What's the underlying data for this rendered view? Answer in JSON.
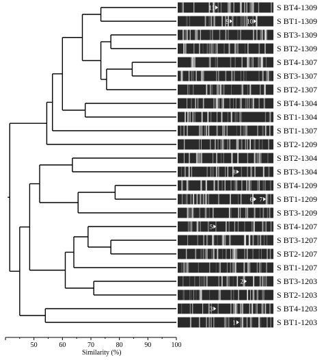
{
  "samples": [
    {
      "label": "S BT4-1309",
      "marks": [
        {
          "n": "11",
          "pos": 0.4
        }
      ]
    },
    {
      "label": "S BT1-1309",
      "marks": [
        {
          "n": "9",
          "pos": 0.55
        },
        {
          "n": "10",
          "pos": 0.8
        }
      ]
    },
    {
      "label": "S BT3-1309",
      "marks": []
    },
    {
      "label": "S BT2-1309",
      "marks": []
    },
    {
      "label": "S BT4-1307",
      "marks": []
    },
    {
      "label": "S BT3-1307",
      "marks": []
    },
    {
      "label": "S BT2-1307",
      "marks": []
    },
    {
      "label": "S BT4-1304",
      "marks": []
    },
    {
      "label": "S BT1-1304",
      "marks": []
    },
    {
      "label": "S BT1-1307",
      "marks": []
    },
    {
      "label": "S BT2-1209",
      "marks": []
    },
    {
      "label": "S BT2-1304",
      "marks": []
    },
    {
      "label": "S BT3-1304",
      "marks": [
        {
          "n": "8",
          "pos": 0.62
        }
      ]
    },
    {
      "label": "S BT4-1209",
      "marks": []
    },
    {
      "label": "S BT1-1209",
      "marks": [
        {
          "n": "6",
          "pos": 0.8
        },
        {
          "n": "7",
          "pos": 0.9
        }
      ]
    },
    {
      "label": "S BT3-1209",
      "marks": []
    },
    {
      "label": "S BT4-1207",
      "marks": [
        {
          "n": "5",
          "pos": 0.38
        }
      ]
    },
    {
      "label": "S BT3-1207",
      "marks": []
    },
    {
      "label": "S BT2-1207",
      "marks": []
    },
    {
      "label": "S BT1-1207",
      "marks": []
    },
    {
      "label": "S BT3-1203",
      "marks": [
        {
          "n": "2",
          "pos": 0.7
        }
      ]
    },
    {
      "label": "S BT2-1203",
      "marks": []
    },
    {
      "label": "S BT4-1203",
      "marks": [
        {
          "n": "3",
          "pos": 0.38
        }
      ]
    },
    {
      "label": "S BT1-1203",
      "marks": [
        {
          "n": "1",
          "pos": 0.62
        }
      ]
    }
  ],
  "axis": {
    "label": "Similarity (%)",
    "min": 40,
    "max": 100,
    "ticks": [
      50,
      60,
      70,
      80,
      90,
      100
    ]
  },
  "tree": {
    "nodes": [
      {
        "id": "a1",
        "sim": 73.5,
        "children": [
          0,
          1
        ]
      },
      {
        "id": "a2",
        "sim": 77.0,
        "children": [
          2,
          3
        ]
      },
      {
        "id": "a3",
        "sim": 84.5,
        "children": [
          4,
          5
        ]
      },
      {
        "id": "a4",
        "sim": 75.5,
        "children": [
          "a3",
          6
        ]
      },
      {
        "id": "a5",
        "sim": 73.5,
        "children": [
          "a2",
          "a4"
        ]
      },
      {
        "id": "a6",
        "sim": 67.0,
        "children": [
          "a1",
          "a5"
        ]
      },
      {
        "id": "a7",
        "sim": 68.0,
        "children": [
          7,
          8
        ]
      },
      {
        "id": "a8",
        "sim": 60.0,
        "children": [
          "a6",
          "a7"
        ]
      },
      {
        "id": "a9",
        "sim": 56.5,
        "children": [
          "a8",
          9
        ]
      },
      {
        "id": "a10",
        "sim": 54.5,
        "children": [
          "a9",
          10
        ]
      },
      {
        "id": "b1",
        "sim": 63.5,
        "children": [
          11,
          12
        ]
      },
      {
        "id": "b2",
        "sim": 78.5,
        "children": [
          13,
          14
        ]
      },
      {
        "id": "b3",
        "sim": 65.5,
        "children": [
          "b2",
          15
        ]
      },
      {
        "id": "b4",
        "sim": 52.0,
        "children": [
          "b1",
          "b3"
        ]
      },
      {
        "id": "c1",
        "sim": 77.0,
        "children": [
          17,
          18
        ]
      },
      {
        "id": "c2",
        "sim": 69.0,
        "children": [
          16,
          "c1"
        ]
      },
      {
        "id": "c3",
        "sim": 64.0,
        "children": [
          "c2",
          19
        ]
      },
      {
        "id": "c4",
        "sim": 71.0,
        "children": [
          20,
          21
        ]
      },
      {
        "id": "c5",
        "sim": 61.0,
        "children": [
          "c3",
          "c4"
        ]
      },
      {
        "id": "d1",
        "sim": 48.5,
        "children": [
          "b4",
          "c5"
        ]
      },
      {
        "id": "e1",
        "sim": 54.0,
        "children": [
          22,
          23
        ]
      },
      {
        "id": "e2",
        "sim": 45.0,
        "children": [
          "d1",
          "e1"
        ]
      },
      {
        "id": "root",
        "sim": 41.5,
        "children": [
          "a10",
          "e2"
        ]
      }
    ]
  }
}
